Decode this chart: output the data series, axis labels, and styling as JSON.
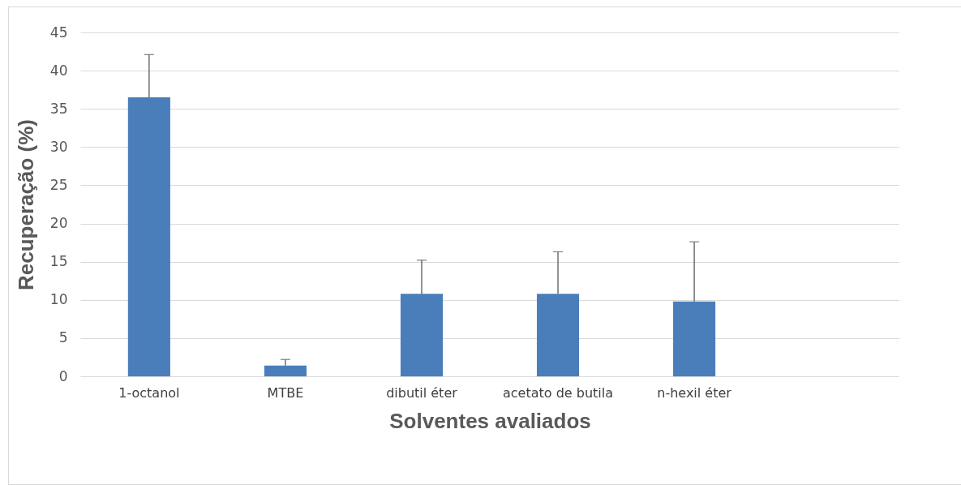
{
  "chart_data": {
    "type": "bar",
    "xlabel": "Solventes avaliados",
    "ylabel": "Recuperação (%)",
    "categories": [
      "1-octanol",
      "MTBE",
      "dibutil éter",
      "acetato de butila",
      "n-hexil éter",
      null
    ],
    "values": [
      36.5,
      1.4,
      10.8,
      10.8,
      9.8,
      null
    ],
    "errors": [
      [
        36.5,
        42.1
      ],
      [
        1.4,
        2.2
      ],
      [
        10.8,
        15.2
      ],
      [
        10.8,
        16.3
      ],
      [
        9.8,
        17.6
      ],
      null
    ],
    "color": "#4a7ebb",
    "ylim": [
      0,
      45
    ],
    "yticks": [
      0,
      5,
      10,
      15,
      20,
      25,
      30,
      35,
      40,
      45
    ],
    "grid": "y"
  }
}
